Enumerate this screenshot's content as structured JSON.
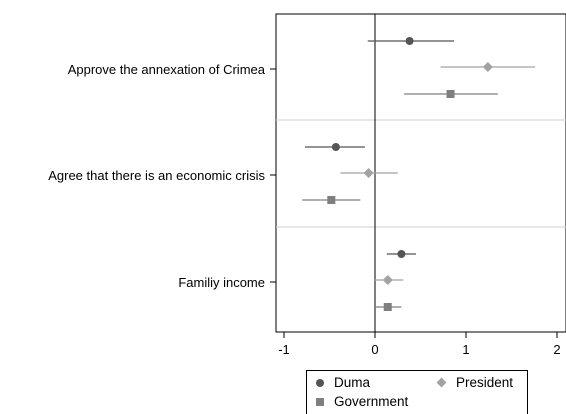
{
  "chart_data": {
    "type": "dot-whisker",
    "title": "",
    "xlabel": "",
    "ylabel": "",
    "xlim": [
      -1.1,
      2.1
    ],
    "xticks": [
      -1,
      0,
      1,
      2
    ],
    "x_tick_labels": [
      "-1",
      "0",
      "1",
      "2"
    ],
    "reference_line_x": 0,
    "groups": [
      "Approve the annexation of Crimea",
      "Agree that there is an economic crisis",
      "Familiy income"
    ],
    "series": [
      {
        "name": "Duma",
        "marker": "circle",
        "color": "#555555",
        "points": [
          {
            "estimate": 0.38,
            "ci_low": -0.08,
            "ci_high": 0.87
          },
          {
            "estimate": -0.43,
            "ci_low": -0.77,
            "ci_high": -0.11
          },
          {
            "estimate": 0.29,
            "ci_low": 0.13,
            "ci_high": 0.45
          }
        ]
      },
      {
        "name": "President",
        "marker": "diamond",
        "color": "#a2a2a2",
        "points": [
          {
            "estimate": 1.24,
            "ci_low": 0.72,
            "ci_high": 1.76
          },
          {
            "estimate": -0.07,
            "ci_low": -0.38,
            "ci_high": 0.25
          },
          {
            "estimate": 0.14,
            "ci_low": 0.0,
            "ci_high": 0.31
          }
        ]
      },
      {
        "name": "Government",
        "marker": "square",
        "color": "#7f7f7f",
        "points": [
          {
            "estimate": 0.83,
            "ci_low": 0.32,
            "ci_high": 1.35
          },
          {
            "estimate": -0.48,
            "ci_low": -0.8,
            "ci_high": -0.16
          },
          {
            "estimate": 0.14,
            "ci_low": 0.0,
            "ci_high": 0.29
          }
        ]
      }
    ],
    "legend": {
      "position": "bottom",
      "entries": [
        "Duma",
        "President",
        "Government"
      ]
    },
    "grid": false
  }
}
